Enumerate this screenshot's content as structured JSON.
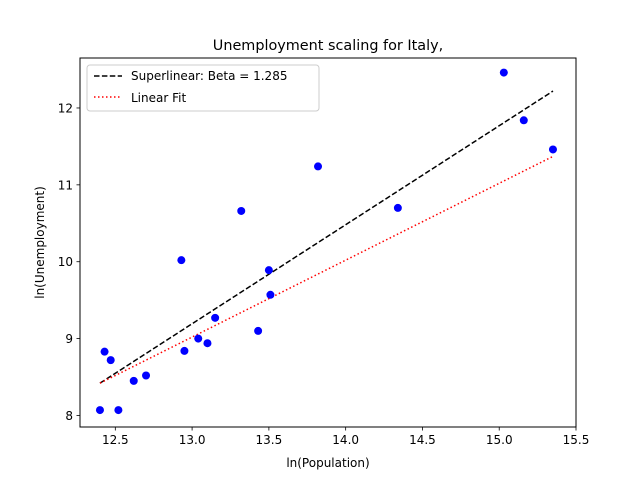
{
  "chart_data": {
    "type": "scatter",
    "title": "Unemployment scaling for Italy,",
    "xlabel": "ln(Population)",
    "ylabel": "ln(Unemployment)",
    "xlim": [
      12.27,
      15.5
    ],
    "ylim": [
      7.85,
      12.65
    ],
    "xticks": [
      12.5,
      13.0,
      13.5,
      14.0,
      14.5,
      15.0,
      15.5
    ],
    "xtick_labels": [
      "12.5",
      "13.0",
      "13.5",
      "14.0",
      "14.5",
      "15.0",
      "15.5"
    ],
    "yticks": [
      8,
      9,
      10,
      11,
      12
    ],
    "ytick_labels": [
      "8",
      "9",
      "10",
      "11",
      "12"
    ],
    "grid": false,
    "legend_position": "upper-left",
    "colors": {
      "points": "#0000ff",
      "superlinear": "#000000",
      "linear": "#ff0000"
    },
    "points": {
      "x": [
        12.4,
        12.43,
        12.47,
        12.52,
        12.62,
        12.7,
        12.93,
        12.95,
        13.04,
        13.1,
        13.15,
        13.32,
        13.43,
        13.5,
        13.51,
        13.82,
        14.34,
        15.03,
        15.16,
        15.35
      ],
      "y": [
        8.07,
        8.83,
        8.72,
        8.07,
        8.45,
        8.52,
        10.02,
        8.84,
        9.0,
        8.94,
        9.27,
        10.66,
        9.1,
        9.89,
        9.57,
        11.24,
        10.7,
        12.46,
        11.84,
        11.46
      ]
    },
    "series": [
      {
        "name": "Superlinear: Beta = 1.285",
        "style": "dashed",
        "x": [
          12.4,
          15.35
        ],
        "y": [
          8.42,
          12.22
        ]
      },
      {
        "name": "Linear Fit",
        "style": "dotted",
        "x": [
          12.4,
          15.35
        ],
        "y": [
          8.42,
          11.37
        ]
      }
    ]
  }
}
